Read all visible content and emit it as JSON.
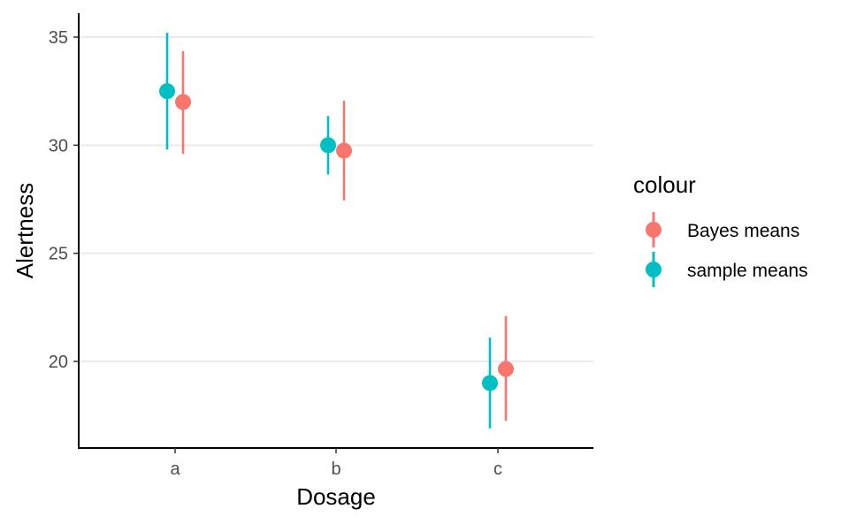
{
  "chart_data": {
    "type": "scatter",
    "title": "",
    "xlabel": "Dosage",
    "ylabel": "Alertness",
    "categories": [
      "a",
      "b",
      "c"
    ],
    "yticks": [
      20,
      25,
      30,
      35
    ],
    "ylim": [
      16,
      36.1
    ],
    "grid": "horizontal major lines",
    "legend": {
      "title": "colour",
      "position": "right"
    },
    "series": [
      {
        "name": "Bayes means",
        "color": "#F8766D",
        "points": [
          {
            "x": "a",
            "y": 32.0,
            "lower": 29.6,
            "upper": 34.35
          },
          {
            "x": "b",
            "y": 29.75,
            "lower": 27.45,
            "upper": 32.05
          },
          {
            "x": "c",
            "y": 19.65,
            "lower": 17.25,
            "upper": 22.1
          }
        ]
      },
      {
        "name": "sample means",
        "color": "#00BFC4",
        "points": [
          {
            "x": "a",
            "y": 32.5,
            "lower": 29.8,
            "upper": 35.2
          },
          {
            "x": "b",
            "y": 30.0,
            "lower": 28.65,
            "upper": 31.35
          },
          {
            "x": "c",
            "y": 19.0,
            "lower": 16.9,
            "upper": 21.1
          }
        ]
      }
    ]
  }
}
